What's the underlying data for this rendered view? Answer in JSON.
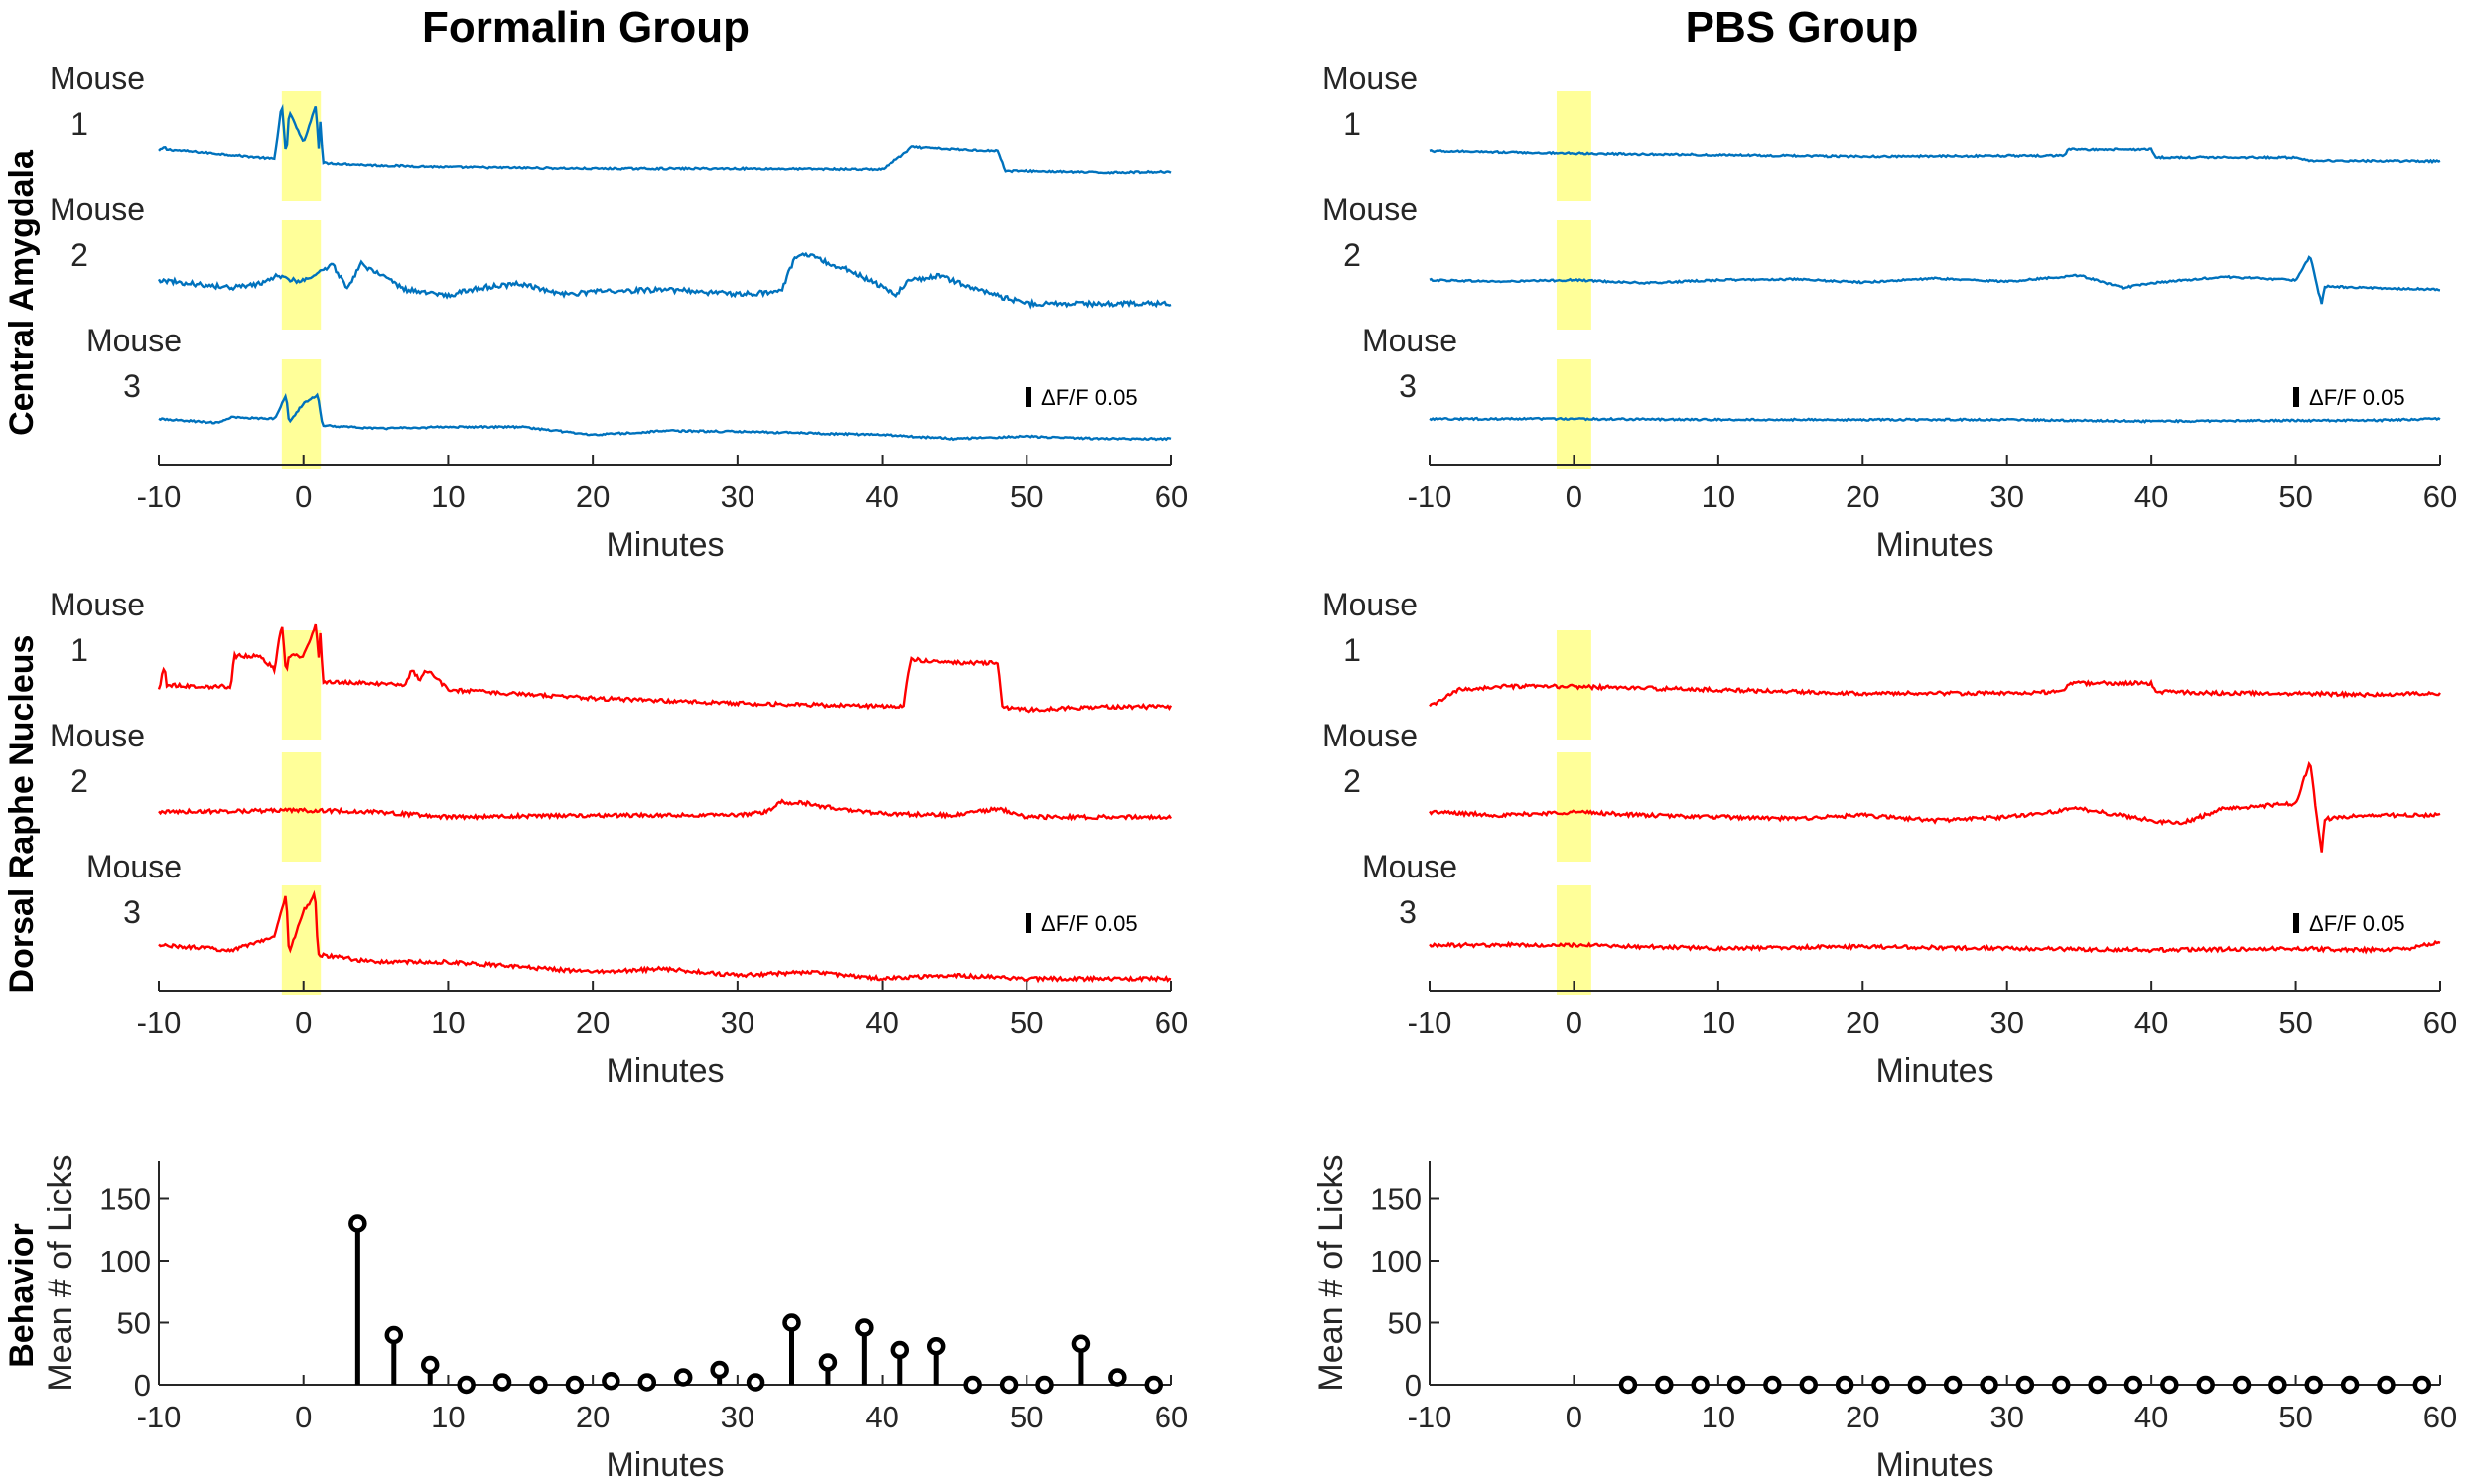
{
  "figure": {
    "columns": [
      "Formalin Group",
      "PBS Group"
    ],
    "rows": [
      "Central Amygdala",
      "Dorsal Raphe Nucleus",
      "Behavior"
    ],
    "mouse_labels": [
      [
        "Mouse",
        "1"
      ],
      [
        "Mouse",
        "2"
      ],
      [
        "Mouse",
        "3"
      ]
    ],
    "scale_bar_label": "ΔF/F 0.05",
    "trace_colors": {
      "Central Amygdala": "#0072BD",
      "Dorsal Raphe Nucleus": "#FF0000"
    },
    "highlight_color": "#FFFF99"
  },
  "chart_data": [
    {
      "type": "line",
      "title": "Formalin Group",
      "row": "Central Amygdala",
      "xlabel": "Minutes",
      "xlim": [
        -10,
        60
      ],
      "xticks": [
        -10,
        0,
        10,
        20,
        30,
        40,
        50,
        60
      ],
      "highlight_x": [
        -1.5,
        1.2
      ],
      "series": [
        {
          "name": "Mouse 1",
          "x": [
            -10,
            -9.6,
            -9.5,
            -5,
            -2,
            -1.5,
            -1.2,
            -1,
            0,
            0.9,
            1,
            1.2,
            1.3,
            5,
            10,
            20,
            30,
            40,
            41.8,
            42,
            45,
            48,
            48.5,
            50,
            55,
            60
          ],
          "y": [
            0,
            0.005,
            0.002,
            -0.005,
            -0.01,
            0.06,
            -0.01,
            0.05,
            0.01,
            0.06,
            -0.01,
            0.05,
            -0.015,
            -0.018,
            -0.02,
            -0.022,
            -0.022,
            -0.023,
            0.0,
            0.005,
            0.002,
            0.0,
            -0.025,
            -0.025,
            -0.027,
            -0.026
          ]
        },
        {
          "name": "Mouse 2",
          "x": [
            -10,
            -5,
            -3,
            -2,
            0,
            2,
            3,
            4,
            7,
            10,
            12,
            15,
            18,
            20,
            25,
            30,
            33,
            34,
            35,
            38,
            41,
            42,
            44,
            47,
            50,
            55,
            60
          ],
          "y": [
            0.0,
            -0.01,
            -0.005,
            0.005,
            -0.002,
            0.02,
            -0.01,
            0.02,
            -0.012,
            -0.02,
            -0.01,
            -0.005,
            -0.018,
            -0.015,
            -0.012,
            -0.018,
            -0.015,
            0.03,
            0.03,
            0.01,
            -0.018,
            0.0,
            0.005,
            -0.015,
            -0.03,
            -0.03,
            -0.03
          ]
        },
        {
          "name": "Mouse 3",
          "x": [
            -10,
            -6,
            -5,
            -2,
            -1.2,
            -1,
            0,
            1,
            1.3,
            5,
            10,
            15,
            20,
            25,
            30,
            35,
            40,
            45,
            50,
            55,
            60
          ],
          "y": [
            0.0,
            -0.005,
            0.002,
            0.0,
            0.03,
            -0.005,
            0.02,
            0.03,
            -0.008,
            -0.012,
            -0.01,
            -0.01,
            -0.02,
            -0.015,
            -0.016,
            -0.018,
            -0.02,
            -0.025,
            -0.022,
            -0.025,
            -0.025
          ]
        }
      ]
    },
    {
      "type": "line",
      "title": "PBS Group",
      "row": "Central Amygdala",
      "xlabel": "Minutes",
      "xlim": [
        -10,
        60
      ],
      "xticks": [
        -10,
        0,
        10,
        20,
        30,
        40,
        50,
        60
      ],
      "highlight_x": [
        -1.2,
        1.2
      ],
      "series": [
        {
          "name": "Mouse 1",
          "x": [
            -10,
            0,
            10,
            20,
            30,
            34,
            34.2,
            40,
            40.3,
            45,
            50,
            51,
            60
          ],
          "y": [
            0.0,
            -0.003,
            -0.005,
            -0.007,
            -0.006,
            -0.006,
            0.002,
            0.002,
            -0.008,
            -0.008,
            -0.008,
            -0.012,
            -0.013
          ]
        },
        {
          "name": "Mouse 2",
          "x": [
            -10,
            -5,
            0,
            5,
            10,
            15,
            20,
            25,
            30,
            35,
            38,
            40,
            45,
            50,
            51,
            51.5,
            51.8,
            52,
            55,
            60
          ],
          "y": [
            0.0,
            -0.002,
            0.0,
            -0.004,
            0.0,
            0.001,
            -0.003,
            0.002,
            -0.002,
            0.006,
            -0.01,
            -0.004,
            0.004,
            0.0,
            0.03,
            -0.01,
            -0.03,
            -0.008,
            -0.01,
            -0.012
          ]
        },
        {
          "name": "Mouse 3",
          "x": [
            -10,
            0,
            10,
            20,
            30,
            40,
            50,
            55,
            60
          ],
          "y": [
            0.0,
            0.0,
            -0.001,
            -0.001,
            -0.001,
            -0.003,
            -0.002,
            -0.002,
            0.0
          ]
        }
      ]
    },
    {
      "type": "line",
      "title": "Formalin Group",
      "row": "Dorsal Raphe Nucleus",
      "xlabel": "Minutes",
      "xlim": [
        -10,
        60
      ],
      "xticks": [
        -10,
        0,
        10,
        20,
        30,
        40,
        50,
        60
      ],
      "highlight_x": [
        -1.5,
        1.2
      ],
      "series": [
        {
          "name": "Mouse 1",
          "x": [
            -10,
            -9.6,
            -9.5,
            -7,
            -5,
            -4.8,
            -3,
            -2,
            -1.5,
            -1.2,
            -1,
            0,
            0.9,
            1,
            1.2,
            1.3,
            7,
            7.5,
            8,
            8.5,
            10,
            20,
            30,
            41.5,
            42,
            45,
            48,
            48.3,
            50,
            55,
            60
          ],
          "y": [
            0.0,
            0.015,
            0.003,
            0.002,
            0.002,
            0.02,
            0.02,
            0.012,
            0.04,
            0.01,
            0.02,
            0.02,
            0.04,
            0.012,
            0.04,
            0.005,
            0.003,
            0.012,
            0.006,
            0.012,
            0.0,
            -0.005,
            -0.008,
            -0.01,
            0.018,
            0.016,
            0.016,
            -0.01,
            -0.012,
            -0.01,
            -0.01
          ]
        },
        {
          "name": "Mouse 2",
          "x": [
            -10,
            0,
            5,
            10,
            20,
            30,
            32,
            33,
            35,
            36,
            40,
            45,
            48,
            50,
            55,
            60
          ],
          "y": [
            0.0,
            0.001,
            0.0,
            -0.003,
            -0.002,
            -0.002,
            0.0,
            0.006,
            0.005,
            0.003,
            -0.001,
            -0.002,
            0.002,
            -0.003,
            -0.003,
            -0.003
          ]
        },
        {
          "name": "Mouse 3",
          "x": [
            -10,
            -5,
            -2,
            -1.2,
            -1,
            0,
            0.8,
            1,
            1.2,
            5,
            10,
            20,
            25,
            30,
            35,
            40,
            45,
            50,
            55,
            60
          ],
          "y": [
            0.0,
            -0.003,
            0.005,
            0.03,
            -0.005,
            0.02,
            0.03,
            -0.006,
            -0.006,
            -0.01,
            -0.01,
            -0.016,
            -0.014,
            -0.018,
            -0.016,
            -0.02,
            -0.018,
            -0.02,
            -0.02,
            -0.02
          ]
        }
      ]
    },
    {
      "type": "line",
      "title": "PBS Group",
      "row": "Dorsal Raphe Nucleus",
      "xlabel": "Minutes",
      "xlim": [
        -10,
        60
      ],
      "xticks": [
        -10,
        0,
        10,
        20,
        30,
        40,
        50,
        60
      ],
      "highlight_x": [
        -1.2,
        1.2
      ],
      "series": [
        {
          "name": "Mouse 1",
          "x": [
            -10,
            -8,
            -5,
            0,
            10,
            20,
            30,
            34,
            34.2,
            40,
            40.3,
            45,
            50,
            55,
            60
          ],
          "y": [
            -0.01,
            0.0,
            0.002,
            0.002,
            0.0,
            -0.002,
            -0.002,
            -0.001,
            0.004,
            0.004,
            -0.001,
            -0.002,
            -0.002,
            -0.003,
            -0.002
          ]
        },
        {
          "name": "Mouse 2",
          "x": [
            -10,
            -5,
            0,
            5,
            10,
            15,
            20,
            25,
            30,
            35,
            40,
            42,
            45,
            50,
            51,
            51.5,
            51.8,
            52,
            55,
            60
          ],
          "y": [
            0.0,
            -0.002,
            0.0,
            -0.002,
            -0.003,
            -0.004,
            -0.002,
            -0.005,
            -0.003,
            0.002,
            -0.005,
            -0.007,
            0.002,
            0.005,
            0.03,
            -0.005,
            -0.025,
            -0.004,
            -0.002,
            -0.002
          ]
        },
        {
          "name": "Mouse 3",
          "x": [
            -10,
            0,
            10,
            20,
            30,
            40,
            50,
            55,
            58,
            60
          ],
          "y": [
            0.0,
            0.0,
            -0.002,
            -0.001,
            -0.002,
            -0.003,
            -0.002,
            -0.003,
            -0.002,
            0.002
          ]
        }
      ]
    },
    {
      "type": "stem",
      "title": "Formalin Group",
      "row": "Behavior",
      "xlabel": "Minutes",
      "ylabel": "Mean # of Licks",
      "xlim": [
        -10,
        60
      ],
      "ylim": [
        0,
        180
      ],
      "xticks": [
        -10,
        0,
        10,
        20,
        30,
        40,
        50,
        60
      ],
      "yticks": [
        0,
        50,
        100,
        150
      ],
      "x": [
        3.75,
        6.25,
        8.75,
        11.25,
        13.75,
        16.25,
        18.75,
        21.25,
        23.75,
        26.25,
        28.75,
        31.25,
        33.75,
        36.25,
        38.75,
        41.25,
        43.75,
        46.25,
        48.75,
        51.25,
        53.75,
        56.25,
        58.75
      ],
      "values": [
        130,
        40,
        16,
        0,
        2,
        0,
        0,
        3,
        2,
        6,
        12,
        2,
        50,
        18,
        46,
        28,
        31,
        0,
        0,
        0,
        33,
        6,
        0
      ]
    },
    {
      "type": "stem",
      "title": "PBS Group",
      "row": "Behavior",
      "xlabel": "Minutes",
      "ylabel": "Mean # of Licks",
      "xlim": [
        -10,
        60
      ],
      "ylim": [
        0,
        180
      ],
      "xticks": [
        -10,
        0,
        10,
        20,
        30,
        40,
        50,
        60
      ],
      "yticks": [
        0,
        50,
        100,
        150
      ],
      "x": [
        3.75,
        6.25,
        8.75,
        11.25,
        13.75,
        16.25,
        18.75,
        21.25,
        23.75,
        26.25,
        28.75,
        31.25,
        33.75,
        36.25,
        38.75,
        41.25,
        43.75,
        46.25,
        48.75,
        51.25,
        53.75,
        56.25,
        58.75
      ],
      "values": [
        0,
        0,
        0,
        0,
        0,
        0,
        0,
        0,
        0,
        0,
        0,
        0,
        0,
        0,
        0,
        0,
        0,
        0,
        0,
        0,
        0,
        0,
        0
      ]
    }
  ]
}
